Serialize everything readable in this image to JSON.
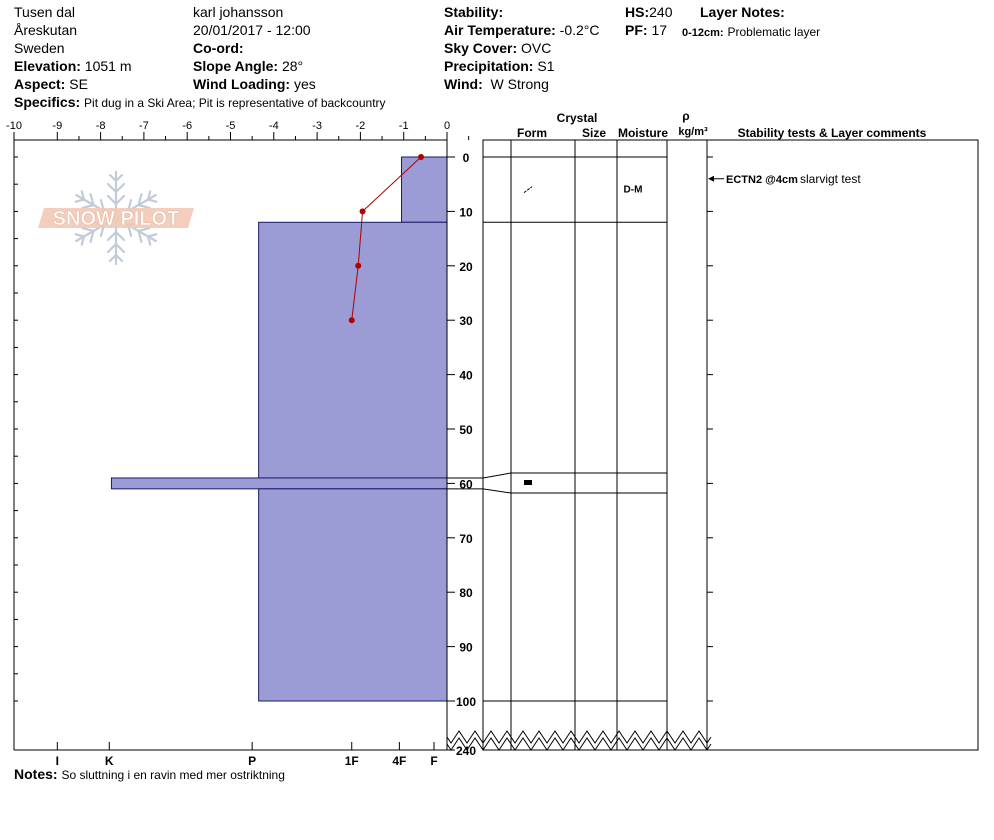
{
  "header": {
    "location": "Tusen dal",
    "area": "Åreskutan",
    "country": "Sweden",
    "elevation_label": "Elevation:",
    "elevation": "1051 m",
    "aspect_label": "Aspect:",
    "aspect": "SE",
    "observer": "karl johansson",
    "datetime": "20/01/2017 - 12:00",
    "coord_label": "Co-ord:",
    "slope_label": "Slope Angle:",
    "slope": "28°",
    "wind_loading_label": "Wind Loading:",
    "wind_loading": "yes",
    "stability_label": "Stability:",
    "air_temp_label": "Air Temperature:",
    "air_temp": "-0.2°C",
    "sky_label": "Sky Cover:",
    "sky": "OVC",
    "precip_label": "Precipitation:",
    "precip": "S1",
    "wind_label": "Wind:",
    "wind": "W Strong",
    "hs_label": "HS:",
    "hs": "240",
    "pf_label": "PF:",
    "pf": "17",
    "layer_notes_label": "Layer Notes:",
    "layer_note_range": "0-12cm:",
    "layer_note_text": "Problematic layer",
    "specifics_label": "Specifics:",
    "specifics": "Pit dug in a Ski Area; Pit is representative of backcountry",
    "notes_label": "Notes:",
    "notes": "So sluttning i en ravin med mer ostriktning"
  },
  "logo": {
    "text": "SNOW PILOT"
  },
  "table_headers": {
    "crystal": "Crystal",
    "form": "Form",
    "size": "Size",
    "moisture": "Moisture",
    "rho": "ρ",
    "density_unit": "kg/m³",
    "stability": "Stability tests & Layer comments"
  },
  "chart_data": {
    "type": "bar",
    "title": "",
    "x_axis_top": {
      "range": [
        -10,
        0
      ],
      "ticks": [
        -10,
        -9,
        -8,
        -7,
        -6,
        -5,
        -4,
        -3,
        -2,
        -1,
        0
      ],
      "labels": [
        "-10",
        "-9",
        "-8",
        "-7",
        "-6",
        "-5",
        "-4",
        "-3",
        "-2",
        "-1",
        "0"
      ]
    },
    "x_axis_bottom": {
      "hardness_labels": [
        "I",
        "K",
        "P",
        "1F",
        "4F",
        "F"
      ],
      "hardness_values": [
        -9,
        -7.8,
        -4.5,
        -2.2,
        -1.1,
        -0.3
      ]
    },
    "y_axis": {
      "range": [
        0,
        240
      ],
      "ticks": [
        0,
        10,
        20,
        30,
        40,
        50,
        60,
        70,
        80,
        90,
        100,
        240
      ],
      "labels": [
        "0",
        "10",
        "20",
        "30",
        "40",
        "50",
        "60",
        "70",
        "80",
        "90",
        "100",
        "240"
      ]
    },
    "hardness_layers": [
      {
        "top": 0,
        "bottom": 12,
        "hardness": -1.05
      },
      {
        "top": 12,
        "bottom": 59,
        "hardness": -4.35
      },
      {
        "top": 59,
        "bottom": 61,
        "hardness": -7.75
      },
      {
        "top": 61,
        "bottom": 100,
        "hardness": -4.35
      }
    ],
    "temperature_profile": [
      {
        "depth": 0,
        "temp": -0.6
      },
      {
        "depth": 10,
        "temp": -1.95
      },
      {
        "depth": 20,
        "temp": -2.05
      },
      {
        "depth": 30,
        "temp": -2.2
      }
    ],
    "layers_table": [
      {
        "top": 0,
        "bottom": 12,
        "form_symbol": "slash",
        "moisture": "D-M"
      },
      {
        "top": 59,
        "bottom": 61,
        "form_symbol": "block",
        "moisture": ""
      },
      {
        "top": 61,
        "bottom": 100,
        "form_symbol": "",
        "moisture": ""
      }
    ],
    "stability_tests": [
      {
        "depth": 4,
        "test": "ECTN2 @4cm",
        "comment": "slarvigt test"
      }
    ],
    "colors": {
      "layer_fill": "#9b9bd6",
      "temp_line": "#b00000"
    }
  }
}
